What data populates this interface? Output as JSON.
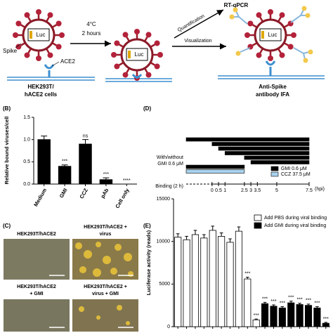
{
  "panel_a": {
    "luc_labels": [
      "Luc",
      "Luc",
      "Luc"
    ],
    "spike": "Spike",
    "ace2": "ACE2",
    "cells": [
      "HEK293T/",
      "hACE2 cells"
    ],
    "temperature": "4°C",
    "duration": "2 hours",
    "quantification": "Quantification",
    "rt_qpcr": "RT-qPCR",
    "visualization": "Visualization",
    "ifa": [
      "Anti-Spike",
      "antibody IFA"
    ]
  },
  "panel_c": {
    "label": "(C)",
    "images": [
      {
        "caption": [
          "HEK293T/hACE2"
        ]
      },
      {
        "caption": [
          "HEK293T/hACE2 +",
          "virus"
        ]
      },
      {
        "caption": [
          "HEK293T/hACE2",
          "+ GMI"
        ]
      },
      {
        "caption": [
          "HEK293T/hACE2 +",
          "virus + GMI"
        ]
      }
    ]
  },
  "chart_data": [
    {
      "label": "(B)",
      "type": "bar",
      "ylabel": "Relative bound viruses/cell",
      "categories": [
        "Medium",
        "GMI",
        "CCZ",
        "pAb",
        "Cell only"
      ],
      "values": [
        1.0,
        0.4,
        0.9,
        0.1,
        0.0
      ],
      "errors": [
        0.08,
        0.03,
        0.1,
        0.04,
        0
      ],
      "annotations": [
        null,
        "***",
        "ns",
        "***",
        "****"
      ],
      "color": "#000000",
      "ylim": [
        0,
        1.5
      ],
      "yticks": [
        {
          "value": 0,
          "label": "0.0"
        },
        {
          "value": 0.5,
          "label": "0.5"
        },
        {
          "value": 1,
          "label": "1.0"
        },
        {
          "value": 1.5,
          "label": "1.5"
        }
      ]
    },
    {
      "label": "(D)",
      "type": "timeline",
      "binding_label": "Binding (2 h)",
      "xunit": "(hpi)",
      "row_label": [
        "With/without",
        "GMI 0.6 μM"
      ],
      "xlim": [
        -2,
        7.5
      ],
      "xticks": [
        0,
        0.5,
        1,
        2.5,
        3,
        3.5,
        5,
        7.5
      ],
      "series": [
        {
          "name": "GMI 0.6 μM",
          "color": "#000000",
          "bars": [
            [
              -2,
              7.5
            ],
            [
              0,
              7.5
            ],
            [
              0.5,
              7.5
            ],
            [
              1,
              7.5
            ],
            [
              2.5,
              7.5
            ],
            [
              3,
              7.5
            ],
            [
              -2,
              2.5
            ]
          ]
        },
        {
          "name": "CCZ 37.5 μM",
          "color": "#a9d3ef",
          "bars": [
            [
              -2,
              2.5
            ]
          ]
        }
      ]
    },
    {
      "label": "(E)",
      "type": "bar",
      "ylabel": "Luciferase activity (reads)",
      "categories": [
        null,
        null,
        null,
        null,
        null,
        null,
        null,
        null,
        null,
        null,
        null,
        null,
        null,
        null,
        null,
        null,
        null,
        null
      ],
      "series": [
        {
          "name": "Add PBS during viral binding",
          "color": "#ffffff",
          "values": [
            10500,
            10200,
            10800,
            10400,
            11300,
            10600,
            9900,
            11200,
            5600,
            800,
            null,
            null,
            null,
            null,
            null,
            null,
            null,
            null
          ],
          "errors": [
            400,
            400,
            500,
            400,
            500,
            400,
            400,
            500,
            200,
            100,
            null,
            null,
            null,
            null,
            null,
            null,
            null,
            null
          ]
        },
        {
          "name": "Add GMI during viral binding",
          "color": "#000000",
          "values": [
            null,
            null,
            null,
            null,
            null,
            null,
            null,
            null,
            null,
            null,
            2700,
            2400,
            2200,
            2800,
            2600,
            2500,
            2200,
            400
          ],
          "errors": [
            null,
            null,
            null,
            null,
            null,
            null,
            null,
            null,
            null,
            null,
            150,
            150,
            150,
            200,
            150,
            150,
            150,
            100
          ]
        }
      ],
      "annotations": [
        null,
        null,
        null,
        null,
        null,
        null,
        null,
        null,
        "***",
        "***",
        "***",
        "***",
        "***",
        "***",
        "***",
        "***",
        "***",
        "***"
      ],
      "ylim": [
        0,
        15000
      ],
      "yticks": [
        0,
        5000,
        10000,
        15000
      ]
    }
  ]
}
